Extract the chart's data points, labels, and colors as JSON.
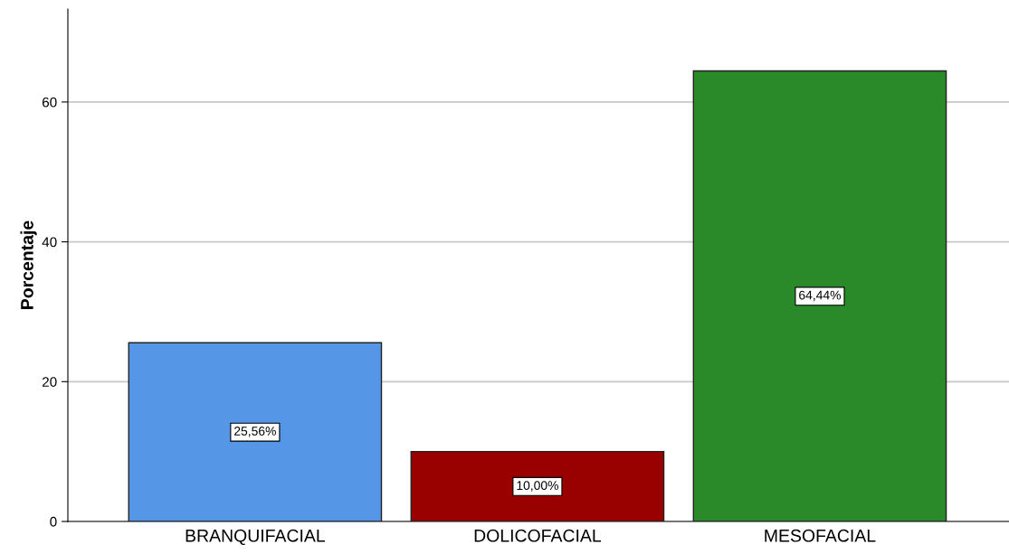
{
  "chart_data": {
    "type": "bar",
    "ylabel": "Porcentaje",
    "categories": [
      "BRANQUIFACIAL",
      "DOLICOFACIAL",
      "MESOFACIAL"
    ],
    "values": [
      25.56,
      10.0,
      64.44
    ],
    "colors": [
      "#5596e6",
      "#990000",
      "#2a8a2a"
    ],
    "value_labels": [
      "25,56%",
      "10,00%",
      "64,44%"
    ],
    "ylim": [
      0,
      73.3
    ],
    "yticks": [
      0,
      20,
      40,
      60
    ],
    "grid": "y",
    "legend": false
  }
}
